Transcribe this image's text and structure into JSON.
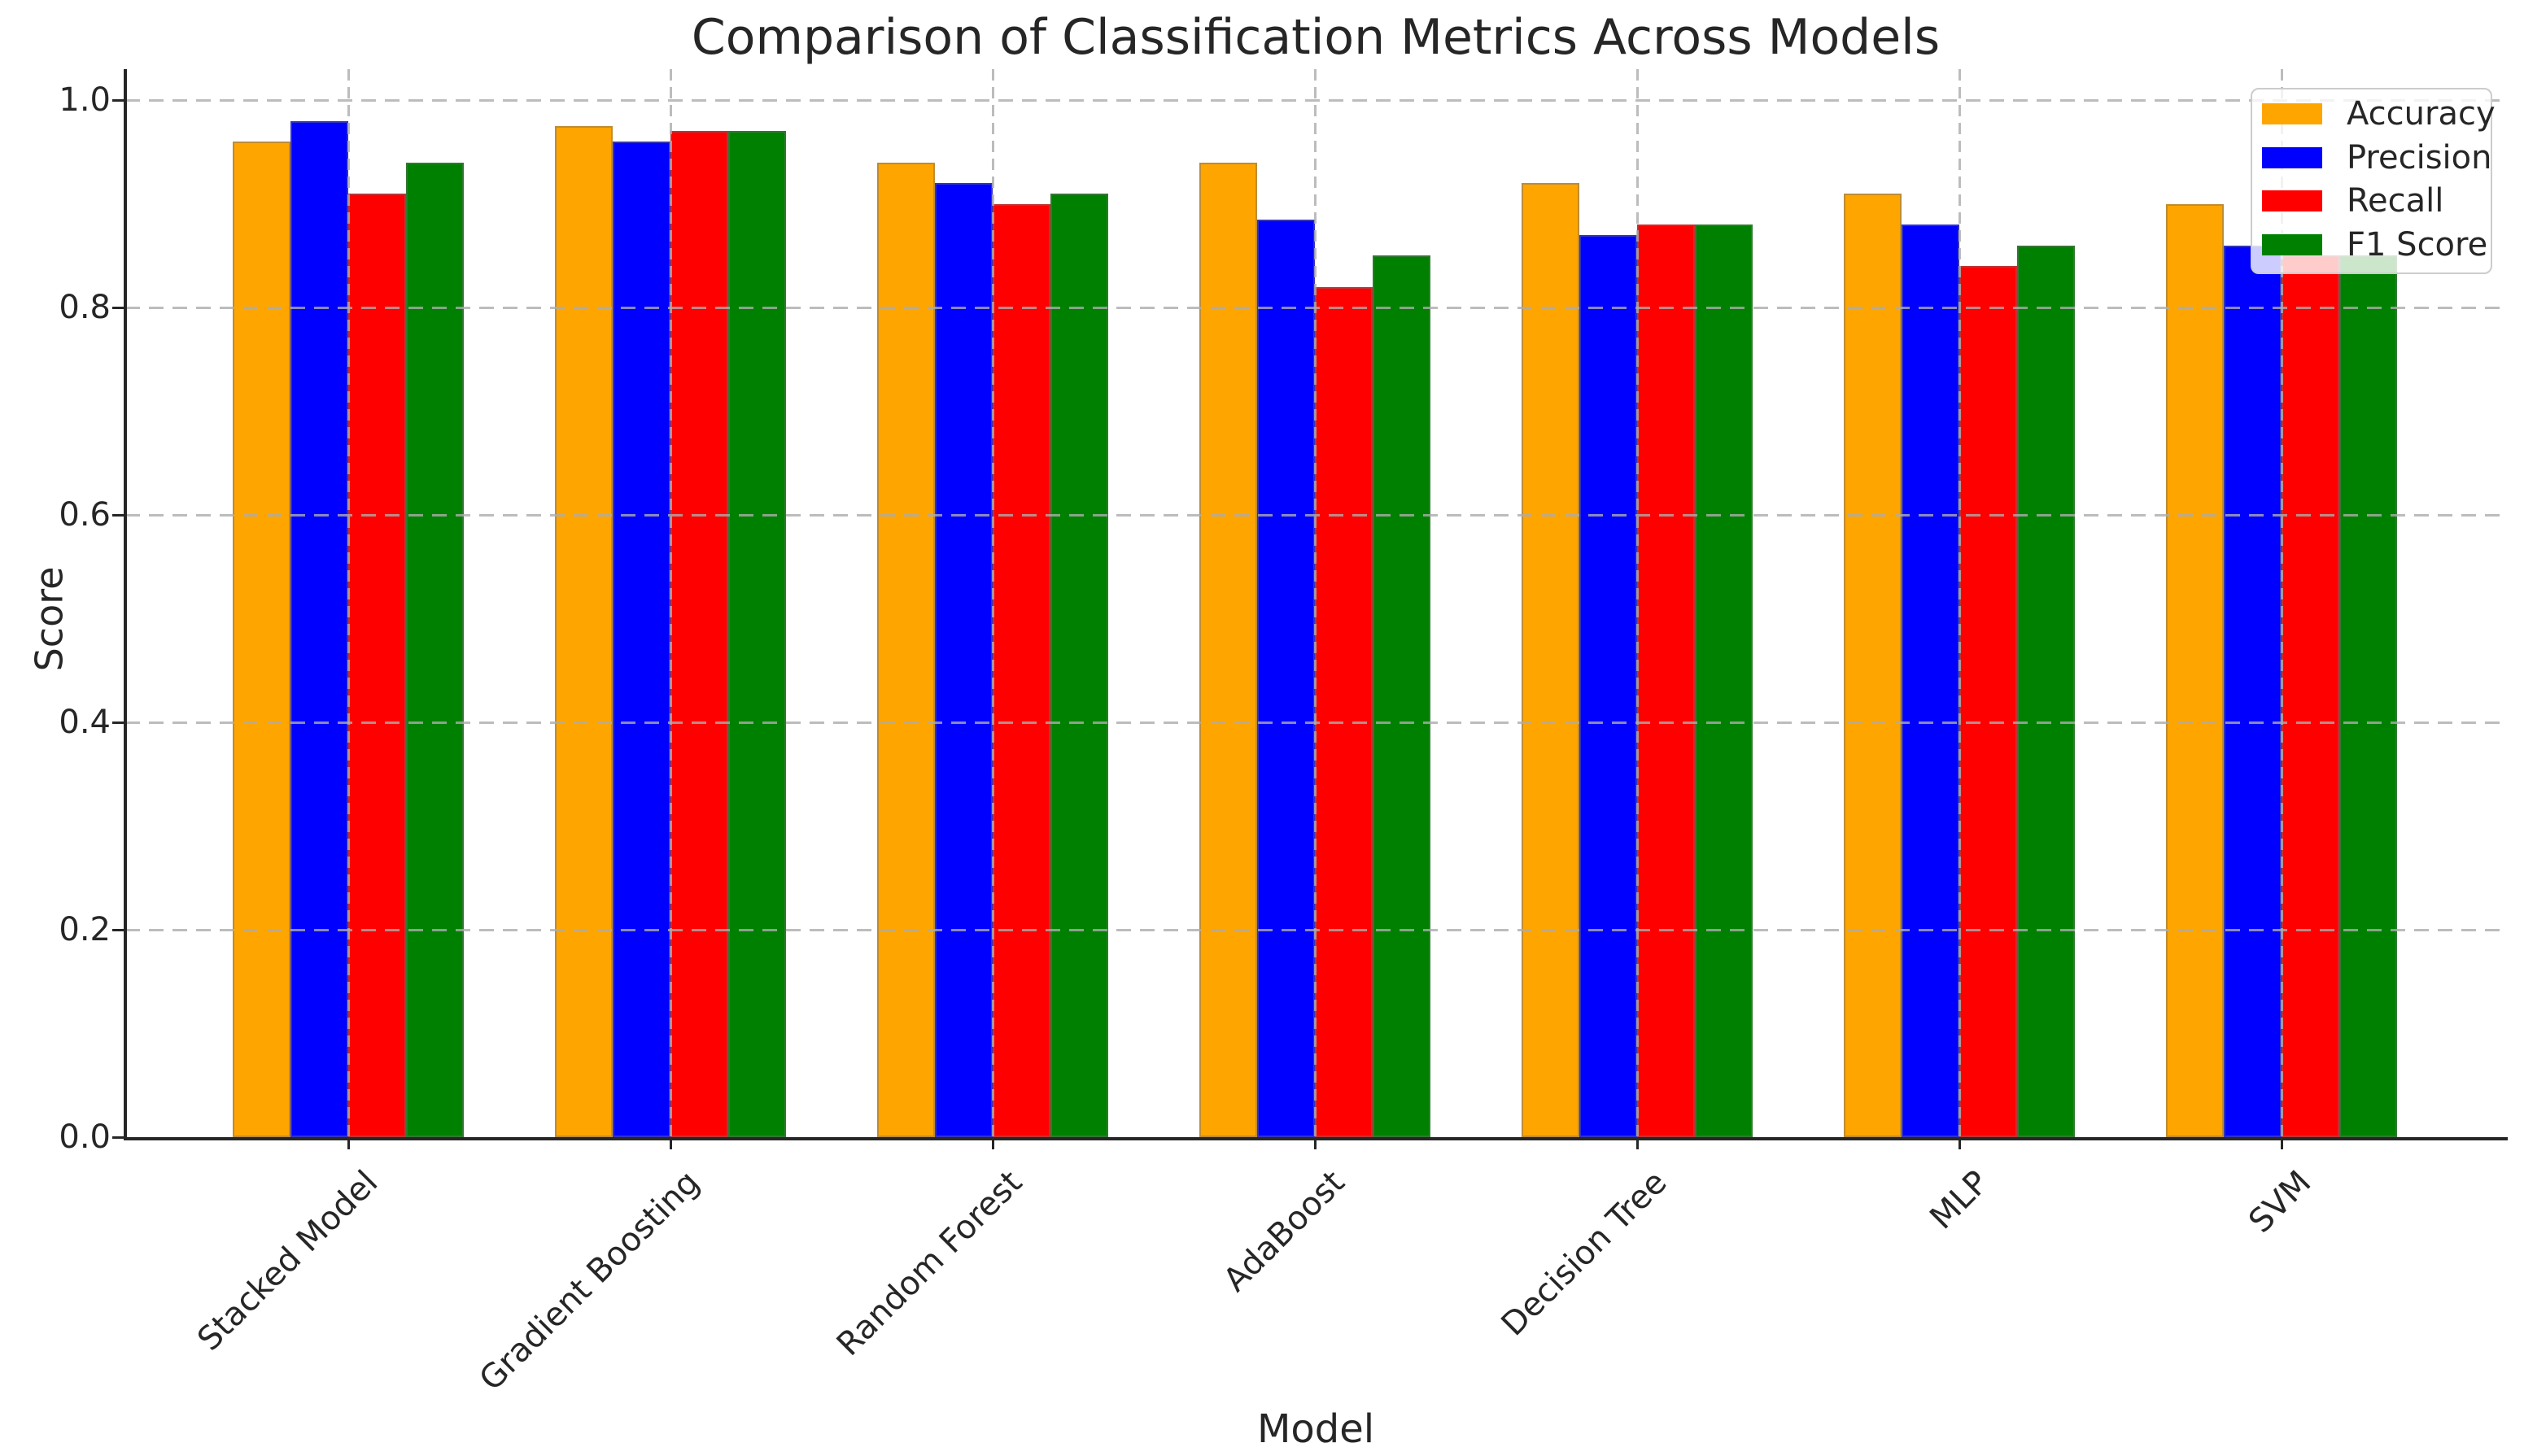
{
  "chart_data": {
    "type": "bar",
    "title": "Comparison of Classification Metrics Across Models",
    "xlabel": "Model",
    "ylabel": "Score",
    "categories": [
      "Stacked Model",
      "Gradient Boosting",
      "Random Forest",
      "AdaBoost",
      "Decision Tree",
      "MLP",
      "SVM"
    ],
    "series": [
      {
        "name": "Accuracy",
        "color": "#FFA500",
        "values": [
          0.96,
          0.975,
          0.94,
          0.94,
          0.92,
          0.91,
          0.9
        ]
      },
      {
        "name": "Precision",
        "color": "#0000FF",
        "values": [
          0.98,
          0.96,
          0.92,
          0.885,
          0.87,
          0.88,
          0.86
        ]
      },
      {
        "name": "Recall",
        "color": "#FF0000",
        "values": [
          0.91,
          0.97,
          0.9,
          0.82,
          0.88,
          0.84,
          0.85
        ]
      },
      {
        "name": "F1 Score",
        "color": "#008000",
        "values": [
          0.94,
          0.97,
          0.91,
          0.85,
          0.88,
          0.86,
          0.85
        ]
      }
    ],
    "ylim": [
      0,
      1.03
    ],
    "yticks": [
      0,
      0.2,
      0.4,
      0.6,
      0.8,
      1.0
    ],
    "ytick_labels": [
      "0.0",
      "0.2",
      "0.4",
      "0.6",
      "0.8",
      "1.0"
    ],
    "grid": {
      "on": true,
      "line_style": "dashed",
      "color": "#acacac",
      "orientation": "both",
      "above_bars": true
    },
    "legend": {
      "position": "upper right"
    }
  }
}
